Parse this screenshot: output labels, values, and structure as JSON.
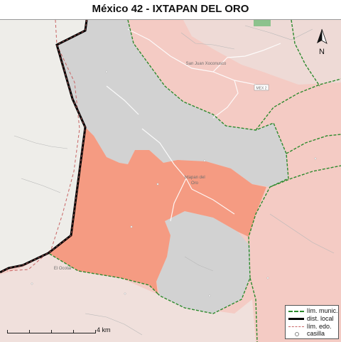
{
  "map": {
    "title": "México 42 - IXTAPAN DEL ORO",
    "north_label": "N",
    "place_labels": {
      "san_juan": "San Juan Xoconusco",
      "ixtapan": "Ixtapan del",
      "ixtapan_2": "Oro",
      "el_ocotal": "El Ocotal",
      "road_shield": "MEX 2"
    },
    "scale_label": "4 km",
    "colors": {
      "highlighted_section": "#f59b82",
      "gray_section": "#d2d2d2",
      "other_district": "#f4cbc4",
      "pale_area": "#f0e0dc",
      "outside_state": "#eeede9",
      "district_line": "#000000",
      "municipal_line": "#2d8a2d",
      "state_line": "#c86464"
    }
  },
  "legend": {
    "items": [
      {
        "label": "lím. munic.",
        "icon": "dashed-green-line-icon"
      },
      {
        "label": "dist. local",
        "icon": "thick-black-line-icon"
      },
      {
        "label": "lím. edo.",
        "icon": "dashed-red-line-icon"
      },
      {
        "label": "casilla",
        "icon": "circle-icon"
      }
    ]
  }
}
